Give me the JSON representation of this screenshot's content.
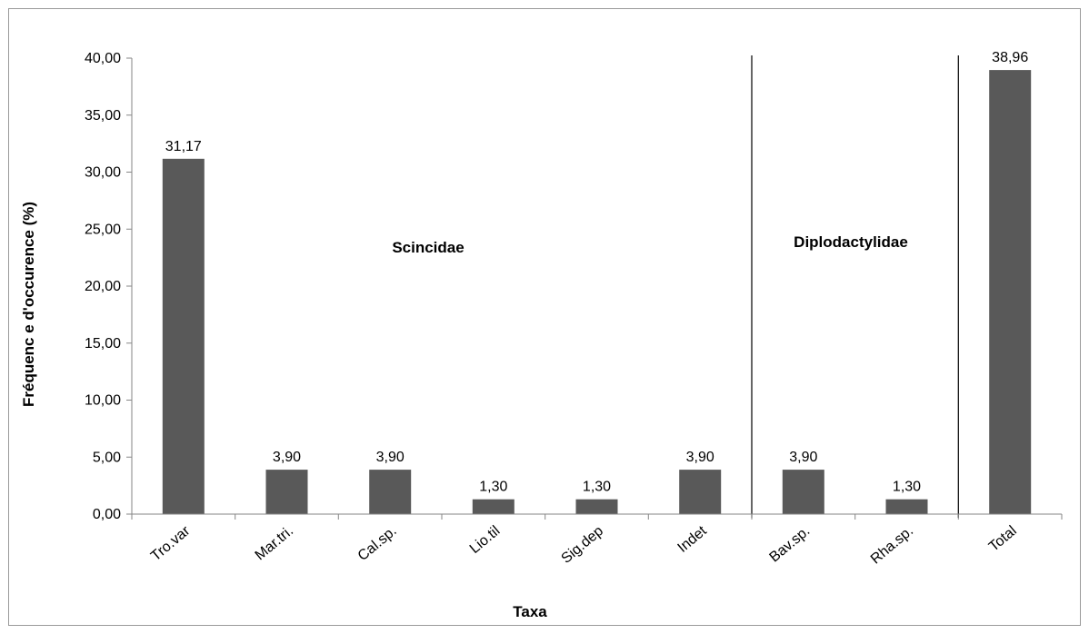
{
  "chart_data": {
    "type": "bar",
    "title": "",
    "xlabel": "Taxa",
    "ylabel": "Fréquenc e d'occurence (%)",
    "categories": [
      "Tro.var",
      "Mar.tri.",
      "Cal.sp.",
      "Lio.til",
      "Sig.dep",
      "Indet",
      "Bav.sp.",
      "Rha.sp.",
      "Total"
    ],
    "values": [
      31.17,
      3.9,
      3.9,
      1.3,
      1.3,
      3.9,
      3.9,
      1.3,
      38.96
    ],
    "data_labels": [
      "31,17",
      "3,90",
      "3,90",
      "1,30",
      "1,30",
      "3,90",
      "3,90",
      "1,30",
      "38,96"
    ],
    "ylim": [
      0,
      40
    ],
    "yticks": [
      0,
      5,
      10,
      15,
      20,
      25,
      30,
      35,
      40
    ],
    "ytick_labels": [
      "0,00",
      "5,00",
      "10,00",
      "15,00",
      "20,00",
      "25,00",
      "30,00",
      "35,00",
      "40,00"
    ],
    "grid": false,
    "legend": "none",
    "bar_color": "#595959",
    "groups": [
      {
        "label": "Scincidae",
        "categories": [
          "Tro.var",
          "Mar.tri.",
          "Cal.sp.",
          "Lio.til",
          "Sig.dep",
          "Indet"
        ]
      },
      {
        "label": "Diplodactylidae",
        "categories": [
          "Bav.sp.",
          "Rha.sp."
        ]
      }
    ]
  }
}
